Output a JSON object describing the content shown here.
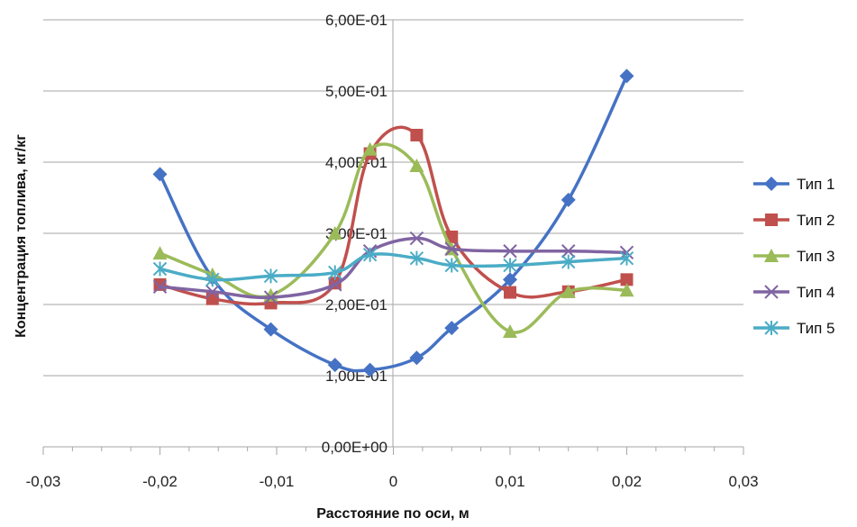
{
  "chart_data": {
    "type": "line",
    "xlabel": "Расстояние по оси, м",
    "ylabel": "Концентрация топлива, кг/кг",
    "xlim": [
      -0.03,
      0.03
    ],
    "ylim": [
      0,
      0.6
    ],
    "x_ticks": [
      -0.03,
      -0.02,
      -0.01,
      0,
      0.01,
      0.02,
      0.03
    ],
    "x_tick_labels": [
      "-0,03",
      "-0,02",
      "-0,01",
      "0",
      "0,01",
      "0,02",
      "0,03"
    ],
    "y_ticks": [
      0,
      0.1,
      0.2,
      0.3,
      0.4,
      0.5,
      0.6
    ],
    "y_tick_labels": [
      "0,00E+00",
      "1,00E-01",
      "2,00E-01",
      "3,00E-01",
      "4,00E-01",
      "5,00E-01",
      "6,00E-01"
    ],
    "grid": "horizontal",
    "legend_position": "right",
    "series": [
      {
        "name": "Тип 1",
        "color": "#4572c4",
        "marker": "diamond",
        "x": [
          -0.02,
          -0.0155,
          -0.0105,
          -0.005,
          -0.002,
          0.002,
          0.005,
          0.01,
          0.015,
          0.02
        ],
        "y": [
          0.383,
          0.237,
          0.165,
          0.115,
          0.108,
          0.125,
          0.167,
          0.235,
          0.347,
          0.521
        ]
      },
      {
        "name": "Тип 2",
        "color": "#c0504d",
        "marker": "square",
        "x": [
          -0.02,
          -0.0155,
          -0.0105,
          -0.005,
          -0.002,
          0.002,
          0.005,
          0.01,
          0.015,
          0.02
        ],
        "y": [
          0.228,
          0.208,
          0.202,
          0.23,
          0.412,
          0.438,
          0.295,
          0.217,
          0.218,
          0.235
        ]
      },
      {
        "name": "Тип 3",
        "color": "#9bbb59",
        "marker": "triangle",
        "x": [
          -0.02,
          -0.0155,
          -0.0105,
          -0.005,
          -0.002,
          0.002,
          0.005,
          0.01,
          0.015,
          0.02
        ],
        "y": [
          0.272,
          0.242,
          0.213,
          0.3,
          0.418,
          0.395,
          0.278,
          0.162,
          0.218,
          0.22
        ]
      },
      {
        "name": "Тип 4",
        "color": "#8064a2",
        "marker": "x",
        "x": [
          -0.02,
          -0.0155,
          -0.0105,
          -0.005,
          -0.002,
          0.002,
          0.005,
          0.01,
          0.015,
          0.02
        ],
        "y": [
          0.225,
          0.218,
          0.21,
          0.228,
          0.275,
          0.293,
          0.278,
          0.275,
          0.275,
          0.273
        ]
      },
      {
        "name": "Тип 5",
        "color": "#4bacc6",
        "marker": "asterisk",
        "x": [
          -0.02,
          -0.0155,
          -0.0105,
          -0.005,
          -0.002,
          0.002,
          0.005,
          0.01,
          0.015,
          0.02
        ],
        "y": [
          0.25,
          0.235,
          0.24,
          0.245,
          0.27,
          0.265,
          0.255,
          0.255,
          0.26,
          0.265
        ]
      }
    ]
  }
}
